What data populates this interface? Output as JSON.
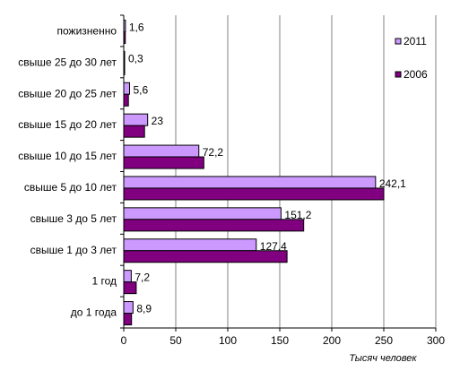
{
  "chart_data": {
    "type": "bar",
    "orientation": "horizontal",
    "categories": [
      "пожизненно",
      "свыше 25 до 30 лет",
      "свыше 20 до 25 лет",
      "свыше 15 до 20 лет",
      "свыше 10  до 15 лет",
      "свыше 5 до 10 лет",
      "свыше 3 до 5 лет",
      "свыше 1 до 3 лет",
      "1 год",
      "до 1 года"
    ],
    "series": [
      {
        "name": "2011",
        "color": "#cc99ff",
        "values": [
          1.6,
          0.3,
          5.6,
          23,
          72.2,
          242.1,
          151.2,
          127.4,
          7.2,
          8.9
        ],
        "labels": [
          "1,6",
          "0,3",
          "5,6",
          "23",
          "72,2",
          "242,1",
          "151,2",
          "127,4",
          "7,2",
          "8,9"
        ]
      },
      {
        "name": "2006",
        "color": "#800080",
        "values": [
          1.5,
          0.3,
          4.5,
          20,
          77,
          250,
          173,
          157,
          12,
          7.5
        ]
      }
    ],
    "xlim": [
      0,
      300
    ],
    "xticks": [
      0,
      50,
      100,
      150,
      200,
      250,
      300
    ],
    "xlabel": "Тысяч человек",
    "ylabel": "",
    "grid": "vertical",
    "legend_position": "right"
  }
}
